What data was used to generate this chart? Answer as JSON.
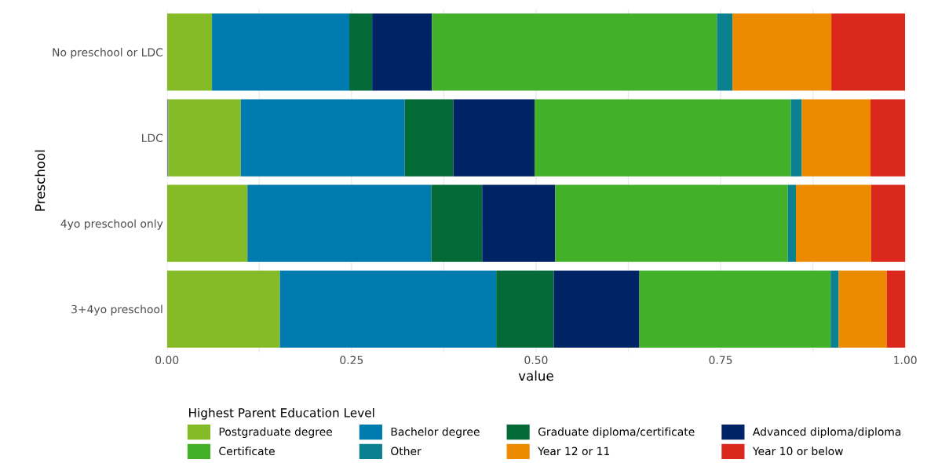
{
  "chart_data": {
    "type": "bar",
    "orientation": "horizontal",
    "stacked": true,
    "xlabel": "value",
    "ylabel": "Preschool",
    "legend_title": "Highest Parent Education Level",
    "legend": "bottom",
    "grid": true,
    "categories": [
      "No preschool or LDC",
      "LDC",
      "4yo preschool only",
      "3+4yo preschool"
    ],
    "xlim": [
      0,
      1
    ],
    "xticks": [
      {
        "value": 0,
        "label": "0.00"
      },
      {
        "value": 0.25,
        "label": "0.25"
      },
      {
        "value": 0.5,
        "label": "0.50"
      },
      {
        "value": 0.75,
        "label": "0.75"
      },
      {
        "value": 1,
        "label": "1.00"
      }
    ],
    "series": [
      {
        "color": "#7f7f9f",
        "values": [
          0,
          0.002,
          0,
          0
        ]
      },
      {
        "name": "Postgraduate degree",
        "color": "#84bb26",
        "values": [
          0.061,
          0.098,
          0.109,
          0.153
        ]
      },
      {
        "name": "Bachelor degree",
        "color": "#007bb0",
        "values": [
          0.186,
          0.222,
          0.249,
          0.293
        ]
      },
      {
        "name": "Graduate diploma/certificate",
        "color": "#046a38",
        "values": [
          0.031,
          0.066,
          0.069,
          0.078
        ]
      },
      {
        "name": "Advanced diploma/diploma",
        "color": "#002366",
        "values": [
          0.081,
          0.11,
          0.099,
          0.116
        ]
      },
      {
        "name": "Certificate",
        "color": "#43b02a",
        "values": [
          0.386,
          0.347,
          0.315,
          0.259
        ]
      },
      {
        "name": "Other",
        "color": "#0b8190",
        "values": [
          0.021,
          0.015,
          0.011,
          0.011
        ]
      },
      {
        "name": "Year 12 or 11",
        "color": "#ed8b00",
        "values": [
          0.134,
          0.093,
          0.102,
          0.065
        ]
      },
      {
        "name": "Year 10 or below",
        "color": "#da291c",
        "values": [
          0.1,
          0.048,
          0.047,
          0.027
        ]
      }
    ]
  }
}
